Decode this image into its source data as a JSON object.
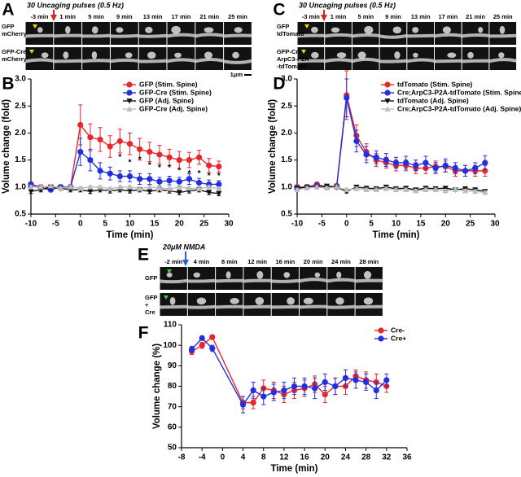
{
  "panel_labels": [
    "A",
    "B",
    "C",
    "D",
    "E",
    "F"
  ],
  "image_panels": [
    {
      "stimulus": "30 Uncaging pulses (0.5 Hz)",
      "times": [
        "-3 min",
        "1 min",
        "5 min",
        "9 min",
        "13 min",
        "17 min",
        "21 min",
        "25 min"
      ],
      "rows": [
        [
          "GFP",
          "mCherry"
        ],
        [
          "GFP-Cre",
          "mCherry"
        ]
      ],
      "scale_bar": "1μm"
    },
    {
      "stimulus": "30 Uncaging pulses (0.5 Hz)",
      "times": [
        "-3 min",
        "1 min",
        "5 min",
        "9 min",
        "13 min",
        "17 min",
        "21 min",
        "25 min"
      ],
      "rows": [
        [
          "GFP",
          "tdTomato"
        ],
        [
          "GFP-Cre",
          "ArpC3-P2A",
          "-tdTomato"
        ]
      ]
    },
    {
      "stimulus": "20μM NMDA",
      "times": [
        "-2 min",
        "4 min",
        "8 min",
        "12 min",
        "16 min",
        "20 min",
        "24 min",
        "28 min"
      ],
      "rows": [
        [
          "GFP"
        ],
        [
          "GFP",
          "+",
          "Cre"
        ]
      ]
    }
  ],
  "chart_data": [
    {
      "type": "line",
      "xlabel": "Time (min)",
      "ylabel": "Volume change (fold)",
      "legend": "upper right",
      "x": [
        -10,
        -8,
        -6,
        -4,
        -2,
        0,
        2,
        4,
        6,
        8,
        10,
        12,
        14,
        16,
        18,
        20,
        22,
        24,
        26,
        28
      ],
      "xlim": [
        -10,
        30
      ],
      "xticks": [
        -10,
        -5,
        0,
        5,
        10,
        15,
        20,
        25,
        30
      ],
      "ylim": [
        0.5,
        3.0
      ],
      "yticks": [
        0.5,
        {
          "value": 1.0,
          "label": "1.0"
        },
        1.5,
        {
          "value": 2.0,
          "label": "2.0"
        },
        2.5,
        {
          "value": 3.0,
          "label": "3.0"
        }
      ],
      "series": [
        {
          "name": "GFP (Stim. Spine)",
          "color": "#e8262b",
          "marker": "circle",
          "values": [
            1.05,
            1.0,
            1.0,
            1.0,
            1.0,
            2.15,
            1.92,
            1.88,
            1.75,
            1.85,
            1.8,
            1.7,
            1.65,
            1.6,
            1.55,
            1.5,
            1.5,
            1.55,
            1.4,
            1.38
          ],
          "errors": [
            0.04,
            0.04,
            0.04,
            0.04,
            0.04,
            0.37,
            0.25,
            0.22,
            0.2,
            0.22,
            0.2,
            0.2,
            0.18,
            0.17,
            0.15,
            0.16,
            0.14,
            0.13,
            0.13,
            0.1
          ]
        },
        {
          "name": "GFP-Cre (Stim. Spine)",
          "color": "#2030e0",
          "marker": "circle",
          "values": [
            1.05,
            0.98,
            0.95,
            1.0,
            1.0,
            1.65,
            1.5,
            1.3,
            1.25,
            1.2,
            1.2,
            1.15,
            1.15,
            1.1,
            1.12,
            1.1,
            1.15,
            1.08,
            1.05,
            1.05
          ],
          "errors": [
            0.04,
            0.04,
            0.04,
            0.04,
            0.04,
            0.25,
            0.2,
            0.15,
            0.12,
            0.1,
            0.1,
            0.1,
            0.1,
            0.08,
            0.08,
            0.08,
            0.1,
            0.08,
            0.08,
            0.07
          ]
        },
        {
          "name": "GFP (Adj. Spine)",
          "color": "#111111",
          "marker": "triangle-down",
          "values": [
            0.92,
            0.95,
            1.0,
            0.98,
            0.95,
            0.95,
            0.92,
            0.95,
            0.93,
            0.95,
            0.93,
            0.95,
            0.92,
            0.95,
            0.93,
            0.9,
            0.93,
            0.95,
            0.9,
            0.88
          ],
          "errors": [
            0.04,
            0.04,
            0.04,
            0.04,
            0.04,
            0.04,
            0.04,
            0.04,
            0.04,
            0.04,
            0.04,
            0.04,
            0.04,
            0.04,
            0.04,
            0.04,
            0.04,
            0.04,
            0.04,
            0.04
          ]
        },
        {
          "name": "GFP-Cre (Adj. Spine)",
          "color": "#bdbdbd",
          "marker": "triangle-up",
          "values": [
            1.0,
            1.0,
            1.02,
            0.98,
            1.0,
            0.98,
            1.0,
            1.0,
            0.97,
            1.0,
            1.0,
            0.97,
            1.0,
            0.98,
            0.97,
            1.0,
            0.98,
            0.97,
            1.0,
            0.97
          ],
          "errors": [
            0.03,
            0.03,
            0.03,
            0.03,
            0.03,
            0.03,
            0.03,
            0.03,
            0.03,
            0.03,
            0.03,
            0.03,
            0.03,
            0.03,
            0.03,
            0.03,
            0.03,
            0.03,
            0.03,
            0.03
          ]
        }
      ],
      "annotations": [
        {
          "text": "*",
          "x": 8,
          "y": 1.55
        },
        {
          "text": "*",
          "x": 10,
          "y": 1.45
        },
        {
          "text": "*",
          "x": 12,
          "y": 1.5
        },
        {
          "text": "*",
          "x": 14,
          "y": 1.4
        },
        {
          "text": "*",
          "x": 16,
          "y": 1.35
        },
        {
          "text": "*",
          "x": 18,
          "y": 1.35
        },
        {
          "text": "*",
          "x": 20,
          "y": 1.3
        },
        {
          "text": "*",
          "x": 22,
          "y": 1.25
        },
        {
          "text": "*",
          "x": 24,
          "y": 1.25
        },
        {
          "text": "*",
          "x": 26,
          "y": 1.2
        },
        {
          "text": "*",
          "x": 28,
          "y": 1.2
        }
      ]
    },
    {
      "type": "line",
      "xlabel": "Time (min)",
      "ylabel": "Volume change (fold)",
      "legend": "upper right",
      "x": [
        -10,
        -8,
        -6,
        -4,
        -2,
        0,
        2,
        4,
        6,
        8,
        10,
        12,
        14,
        16,
        18,
        20,
        22,
        24,
        26,
        28
      ],
      "xlim": [
        -10,
        30
      ],
      "xticks": [
        -10,
        -5,
        0,
        5,
        10,
        15,
        20,
        25,
        30
      ],
      "ylim": [
        0.5,
        3.0
      ],
      "yticks": [
        0.5,
        {
          "value": 1.0,
          "label": "1.0"
        },
        1.5,
        {
          "value": 2.0,
          "label": "2.0"
        },
        2.5,
        {
          "value": 3.0,
          "label": "3.0"
        }
      ],
      "series": [
        {
          "name": "tdTomato (Stim. Spine)",
          "color": "#e8262b",
          "marker": "circle",
          "values": [
            1.0,
            1.0,
            1.05,
            1.0,
            1.02,
            2.7,
            1.95,
            1.65,
            1.5,
            1.45,
            1.4,
            1.4,
            1.35,
            1.35,
            1.38,
            1.38,
            1.3,
            1.3,
            1.3,
            1.3
          ],
          "errors": [
            0.04,
            0.04,
            0.04,
            0.04,
            0.04,
            0.45,
            0.2,
            0.15,
            0.12,
            0.1,
            0.1,
            0.1,
            0.1,
            0.1,
            0.1,
            0.1,
            0.1,
            0.1,
            0.1,
            0.1
          ]
        },
        {
          "name": "Cre;ArpC3-P2A-tdTomato (Stim. Spine)",
          "color": "#2030e0",
          "marker": "circle",
          "values": [
            0.98,
            1.0,
            1.02,
            1.0,
            1.0,
            2.65,
            1.85,
            1.6,
            1.55,
            1.5,
            1.45,
            1.45,
            1.4,
            1.45,
            1.35,
            1.4,
            1.35,
            1.3,
            1.35,
            1.45
          ],
          "errors": [
            0.04,
            0.04,
            0.04,
            0.04,
            0.04,
            0.35,
            0.2,
            0.15,
            0.12,
            0.12,
            0.1,
            0.12,
            0.1,
            0.12,
            0.1,
            0.12,
            0.1,
            0.1,
            0.1,
            0.13
          ]
        },
        {
          "name": "tdTomato (Adj. Spine)",
          "color": "#111111",
          "marker": "triangle-down",
          "values": [
            0.98,
            1.0,
            1.0,
            1.02,
            1.0,
            0.92,
            1.0,
            0.98,
            0.97,
            1.0,
            0.97,
            0.98,
            0.95,
            0.98,
            0.97,
            0.98,
            0.95,
            0.97,
            0.95,
            0.92
          ],
          "errors": [
            0.03,
            0.03,
            0.03,
            0.03,
            0.03,
            0.03,
            0.03,
            0.03,
            0.03,
            0.03,
            0.03,
            0.03,
            0.03,
            0.03,
            0.03,
            0.03,
            0.03,
            0.03,
            0.03,
            0.03
          ]
        },
        {
          "name": "Cre;ArpC3-P2A-tdTomato (Adj. Spine)",
          "color": "#bdbdbd",
          "marker": "triangle-up",
          "values": [
            0.95,
            0.98,
            1.0,
            0.98,
            1.0,
            0.95,
            0.97,
            0.95,
            0.95,
            0.97,
            0.95,
            0.95,
            0.93,
            0.95,
            0.95,
            0.93,
            0.95,
            0.93,
            0.92,
            0.9
          ],
          "errors": [
            0.03,
            0.03,
            0.03,
            0.03,
            0.03,
            0.03,
            0.03,
            0.03,
            0.03,
            0.03,
            0.03,
            0.03,
            0.03,
            0.03,
            0.03,
            0.03,
            0.03,
            0.03,
            0.03,
            0.03
          ]
        }
      ]
    },
    {
      "type": "line",
      "xlabel": "Time (min)",
      "ylabel": "Volume change (%)",
      "legend": "upper right",
      "x": [
        -6,
        -4,
        -2,
        4,
        6,
        8,
        10,
        12,
        14,
        16,
        18,
        20,
        22,
        24,
        26,
        28,
        30,
        32
      ],
      "xlim": [
        -8,
        36
      ],
      "xticks": [
        -8,
        -4,
        0,
        4,
        8,
        12,
        16,
        20,
        24,
        28,
        32,
        36
      ],
      "ylim": [
        50,
        110
      ],
      "yticks": [
        50,
        60,
        70,
        80,
        90,
        100,
        110
      ],
      "series": [
        {
          "name": "Cre-",
          "color": "#e8262b",
          "marker": "circle",
          "values": [
            97,
            100,
            104,
            72,
            72,
            79,
            78,
            76,
            78,
            79,
            81,
            76,
            80,
            80,
            85,
            83,
            82,
            80
          ],
          "errors": [
            1.5,
            1.5,
            1,
            3,
            3,
            4,
            4,
            4,
            4,
            4,
            4,
            4,
            4,
            4,
            3,
            4,
            4,
            3
          ]
        },
        {
          "name": "Cre+",
          "color": "#2030e0",
          "marker": "circle",
          "values": [
            98,
            103.5,
            98.5,
            71,
            78,
            75,
            77,
            78,
            80,
            80,
            79,
            82,
            80,
            84,
            83,
            82,
            78,
            83
          ],
          "errors": [
            1.5,
            1,
            1.5,
            4,
            4,
            4,
            4,
            4,
            4,
            4,
            5,
            4,
            4,
            4,
            4,
            4,
            4,
            3
          ]
        }
      ]
    }
  ]
}
